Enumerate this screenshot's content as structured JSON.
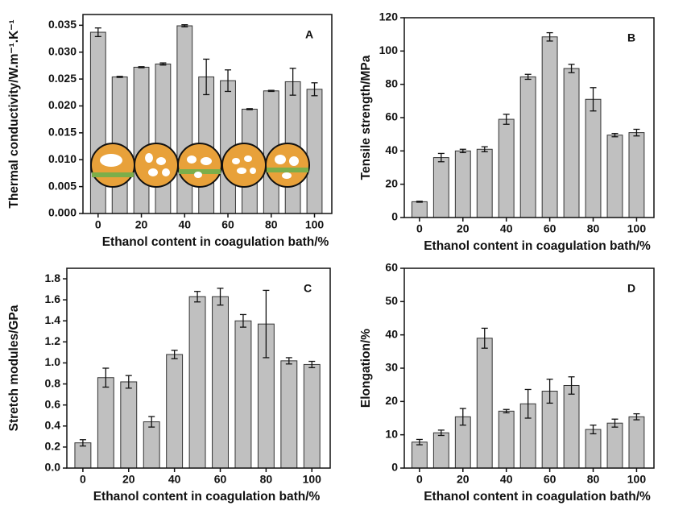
{
  "chart_data": [
    {
      "type": "bar",
      "panel": "A",
      "xlabel": "Ethanol content in coagulation bath/%",
      "ylabel": "Thermal conductivity/W.m⁻¹.K⁻¹",
      "x": [
        0,
        10,
        20,
        30,
        40,
        50,
        60,
        70,
        80,
        90,
        100
      ],
      "values": [
        0.0337,
        0.0254,
        0.0272,
        0.0278,
        0.0349,
        0.0254,
        0.0247,
        0.0194,
        0.0228,
        0.0245,
        0.0231
      ],
      "errors": [
        0.0008,
        0.0001,
        0.0001,
        0.0002,
        0.0002,
        0.0033,
        0.002,
        0.0001,
        0.0001,
        0.0025,
        0.0012
      ],
      "color": "#c0c0c0",
      "xlim": [
        -7,
        108
      ],
      "xticks": [
        0,
        20,
        40,
        60,
        80,
        100
      ],
      "ylim": [
        0,
        0.037
      ],
      "yticks": [
        {
          "value": 0,
          "label": "0.000"
        },
        {
          "value": 0.005,
          "label": "0.005"
        },
        {
          "value": 0.01,
          "label": "0.010"
        },
        {
          "value": 0.015,
          "label": "0.015"
        },
        {
          "value": 0.02,
          "label": "0.020"
        },
        {
          "value": 0.025,
          "label": "0.025"
        },
        {
          "value": 0.03,
          "label": "0.030"
        },
        {
          "value": 0.035,
          "label": "0.035"
        }
      ]
    },
    {
      "type": "bar",
      "panel": "B",
      "xlabel": "Ethanol content in coagulation bath/%",
      "ylabel": "Tensile strength/MPa",
      "x": [
        0,
        10,
        20,
        30,
        40,
        50,
        60,
        70,
        80,
        90,
        100
      ],
      "values": [
        9.5,
        36,
        40,
        41,
        59,
        84.5,
        108.5,
        89.5,
        71,
        49.5,
        51
      ],
      "errors": [
        0.3,
        2.5,
        1,
        1.5,
        3,
        1.5,
        2.5,
        2.5,
        7,
        1,
        2
      ],
      "color": "#c0c0c0",
      "xlim": [
        -7,
        108
      ],
      "xticks": [
        0,
        20,
        40,
        60,
        80,
        100
      ],
      "ylim": [
        0,
        120
      ],
      "yticks": [
        0,
        20,
        40,
        60,
        80,
        100,
        120
      ]
    },
    {
      "type": "bar",
      "panel": "C",
      "xlabel": "Ethanol content in coagulation bath/%",
      "ylabel": "Stretch modules/GPa",
      "x": [
        0,
        10,
        20,
        30,
        40,
        50,
        60,
        70,
        80,
        90,
        100
      ],
      "values": [
        0.24,
        0.86,
        0.82,
        0.44,
        1.08,
        1.63,
        1.63,
        1.4,
        1.37,
        1.02,
        0.985
      ],
      "errors": [
        0.03,
        0.09,
        0.06,
        0.05,
        0.04,
        0.05,
        0.08,
        0.06,
        0.32,
        0.03,
        0.03
      ],
      "color": "#c0c0c0",
      "xlim": [
        -7,
        108
      ],
      "xticks": [
        0,
        20,
        40,
        60,
        80,
        100
      ],
      "ylim": [
        0,
        1.9
      ],
      "yticks": [
        {
          "value": 0,
          "label": "0.0"
        },
        0.2,
        0.4,
        0.6,
        0.8,
        {
          "value": 1,
          "label": "1.0"
        },
        1.2,
        1.4,
        1.6,
        1.8
      ]
    },
    {
      "type": "bar",
      "panel": "D",
      "xlabel": "Ethanol content in coagulation bath/%",
      "ylabel": "Elongation/%",
      "x": [
        0,
        10,
        20,
        30,
        40,
        50,
        60,
        70,
        80,
        90,
        100
      ],
      "values": [
        7.8,
        10.6,
        15.4,
        39,
        17.1,
        19.3,
        23.1,
        24.8,
        11.6,
        13.5,
        15.4
      ],
      "errors": [
        0.8,
        0.8,
        2.5,
        3,
        0.5,
        4.3,
        3.6,
        2.6,
        1.3,
        1.2,
        0.9
      ],
      "color": "#c0c0c0",
      "xlim": [
        -7,
        108
      ],
      "xticks": [
        0,
        20,
        40,
        60,
        80,
        100
      ],
      "ylim": [
        0,
        60
      ],
      "yticks": [
        0,
        10,
        20,
        30,
        40,
        50,
        60
      ]
    }
  ]
}
